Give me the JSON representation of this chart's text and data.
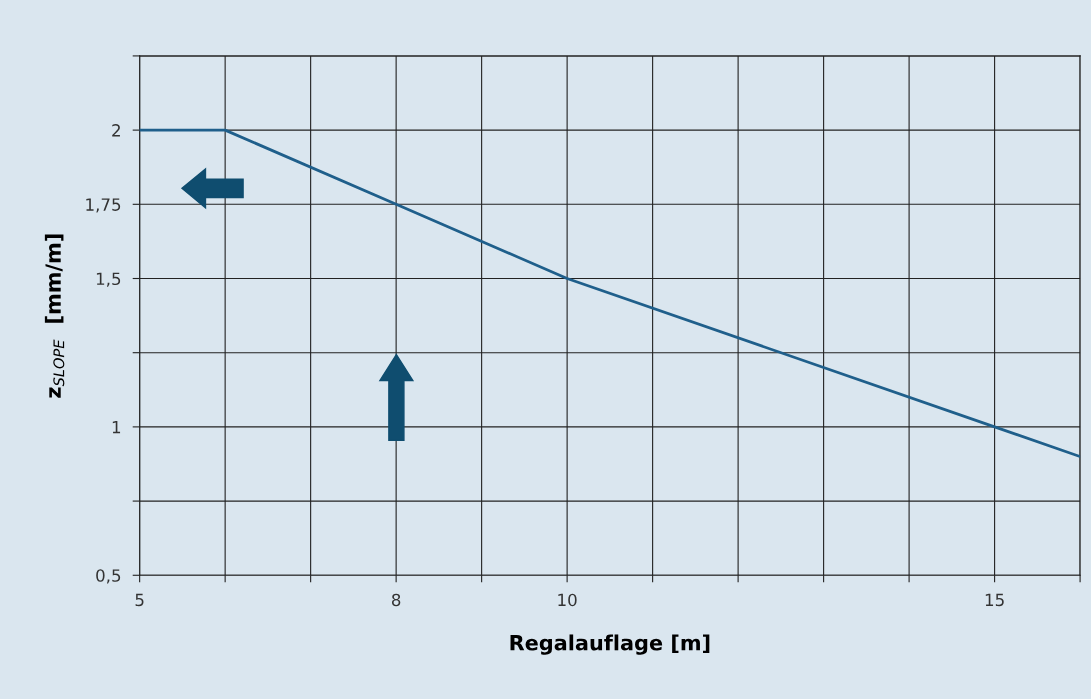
{
  "chart_data": {
    "type": "line",
    "xlabel": "Regalauflage [m]",
    "ylabel": "z$_{SLOPE}$  [mm/m]",
    "x": [
      5,
      6,
      8,
      10,
      15,
      16
    ],
    "series": [
      {
        "color": "#1f5f8b",
        "values": [
          2,
          2,
          1.75,
          1.5,
          1.0,
          0.9
        ]
      }
    ],
    "xlim": [
      5,
      16
    ],
    "ylim": [
      0.5,
      2.25
    ],
    "xticks": [
      5,
      {
        "value": 6,
        "label": null
      },
      {
        "value": 7,
        "label": null
      },
      8,
      {
        "value": 9,
        "label": null
      },
      10,
      {
        "value": 11,
        "label": null
      },
      {
        "value": 12,
        "label": null
      },
      {
        "value": 13,
        "label": null
      },
      {
        "value": 14,
        "label": null
      },
      15,
      {
        "value": 16,
        "label": null
      }
    ],
    "yticks": [
      {
        "value": 0.5,
        "label": "0,5"
      },
      {
        "value": 0.75,
        "label": null
      },
      1,
      {
        "value": 1.25,
        "label": null
      },
      {
        "value": 1.5,
        "label": "1,5"
      },
      {
        "value": 1.75,
        "label": "1,75"
      },
      2,
      {
        "value": 2.25,
        "label": null
      }
    ],
    "grid": true,
    "marker": "none",
    "line_style": "solid",
    "legend": false
  }
}
